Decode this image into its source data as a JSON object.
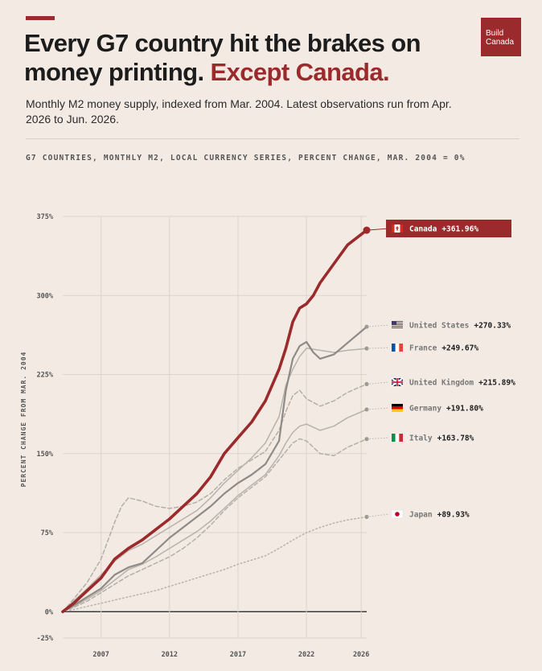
{
  "header": {
    "title_main": "Every G7 country hit the brakes on money printing.",
    "title_highlight": "Except Canada.",
    "subtitle": "Monthly M2 money supply, indexed from Mar. 2004. Latest observations run from Apr. 2026 to Jun. 2026.",
    "caption": "G7 COUNTRIES, MONTHLY M2, LOCAL CURRENCY SERIES, PERCENT CHANGE, MAR. 2004 = 0%",
    "logo_line1": "Build",
    "logo_line2": "Canada"
  },
  "colors": {
    "accent": "#9b2a2c",
    "background": "#f3ebe3",
    "grid": "#ddd3c9"
  },
  "chart_data": {
    "type": "line",
    "xlabel": "",
    "ylabel": "PERCENT CHANGE FROM MAR. 2004",
    "xlim": [
      2004.2,
      2026.4
    ],
    "ylim": [
      -25,
      375
    ],
    "yticks": [
      -25,
      0,
      75,
      150,
      225,
      300,
      375
    ],
    "ytick_labels": [
      "-25%",
      "0%",
      "75%",
      "150%",
      "225%",
      "300%",
      "375%"
    ],
    "xticks": [
      2007,
      2012,
      2017,
      2022,
      2026
    ],
    "xtick_labels": [
      "2007",
      "2012",
      "2017",
      "2022",
      "2026"
    ],
    "grid": true,
    "series": [
      {
        "name": "Canada",
        "label_value": "+361.96%",
        "flag": "ca",
        "style": "bold",
        "points": [
          [
            2004.2,
            0
          ],
          [
            2005,
            8
          ],
          [
            2006,
            20
          ],
          [
            2007,
            32
          ],
          [
            2008,
            50
          ],
          [
            2009,
            60
          ],
          [
            2010,
            68
          ],
          [
            2011,
            78
          ],
          [
            2012,
            88
          ],
          [
            2013,
            100
          ],
          [
            2014,
            112
          ],
          [
            2015,
            128
          ],
          [
            2016,
            150
          ],
          [
            2017,
            165
          ],
          [
            2018,
            180
          ],
          [
            2019,
            200
          ],
          [
            2020,
            230
          ],
          [
            2020.5,
            250
          ],
          [
            2021,
            275
          ],
          [
            2021.5,
            288
          ],
          [
            2022,
            292
          ],
          [
            2022.5,
            300
          ],
          [
            2023,
            312
          ],
          [
            2024,
            330
          ],
          [
            2025,
            348
          ],
          [
            2026.4,
            361.96
          ]
        ]
      },
      {
        "name": "United States",
        "label_value": "+270.33%",
        "flag": "us",
        "style": "solid",
        "points": [
          [
            2004.2,
            0
          ],
          [
            2005,
            6
          ],
          [
            2006,
            14
          ],
          [
            2007,
            22
          ],
          [
            2008,
            35
          ],
          [
            2009,
            42
          ],
          [
            2010,
            46
          ],
          [
            2011,
            58
          ],
          [
            2012,
            70
          ],
          [
            2013,
            80
          ],
          [
            2014,
            90
          ],
          [
            2015,
            100
          ],
          [
            2016,
            112
          ],
          [
            2017,
            122
          ],
          [
            2018,
            130
          ],
          [
            2019,
            140
          ],
          [
            2020,
            162
          ],
          [
            2020.5,
            210
          ],
          [
            2021,
            240
          ],
          [
            2021.5,
            252
          ],
          [
            2022,
            256
          ],
          [
            2022.5,
            246
          ],
          [
            2023,
            240
          ],
          [
            2024,
            244
          ],
          [
            2025,
            255
          ],
          [
            2026.4,
            270.33
          ]
        ]
      },
      {
        "name": "France",
        "label_value": "+249.67%",
        "flag": "fr",
        "style": "solid-light",
        "points": [
          [
            2004.2,
            0
          ],
          [
            2005,
            10
          ],
          [
            2006,
            22
          ],
          [
            2007,
            35
          ],
          [
            2008,
            48
          ],
          [
            2009,
            58
          ],
          [
            2010,
            64
          ],
          [
            2011,
            72
          ],
          [
            2012,
            80
          ],
          [
            2013,
            88
          ],
          [
            2014,
            96
          ],
          [
            2015,
            108
          ],
          [
            2016,
            122
          ],
          [
            2017,
            134
          ],
          [
            2018,
            146
          ],
          [
            2019,
            160
          ],
          [
            2020,
            185
          ],
          [
            2020.5,
            215
          ],
          [
            2021,
            230
          ],
          [
            2021.5,
            242
          ],
          [
            2022,
            250
          ],
          [
            2023,
            248
          ],
          [
            2024,
            246
          ],
          [
            2025,
            248
          ],
          [
            2026.4,
            249.67
          ]
        ]
      },
      {
        "name": "United Kingdom",
        "label_value": "+215.89%",
        "flag": "gb",
        "style": "dashed",
        "points": [
          [
            2004.2,
            0
          ],
          [
            2005,
            12
          ],
          [
            2006,
            28
          ],
          [
            2007,
            50
          ],
          [
            2008,
            85
          ],
          [
            2008.5,
            100
          ],
          [
            2009,
            108
          ],
          [
            2010,
            105
          ],
          [
            2011,
            100
          ],
          [
            2012,
            98
          ],
          [
            2013,
            100
          ],
          [
            2014,
            104
          ],
          [
            2015,
            112
          ],
          [
            2016,
            125
          ],
          [
            2017,
            136
          ],
          [
            2018,
            144
          ],
          [
            2019,
            152
          ],
          [
            2020,
            172
          ],
          [
            2020.5,
            190
          ],
          [
            2021,
            205
          ],
          [
            2021.5,
            210
          ],
          [
            2022,
            202
          ],
          [
            2023,
            195
          ],
          [
            2024,
            200
          ],
          [
            2025,
            208
          ],
          [
            2026.4,
            215.89
          ]
        ]
      },
      {
        "name": "Germany",
        "label_value": "+191.80%",
        "flag": "de",
        "style": "solid-light",
        "points": [
          [
            2004.2,
            0
          ],
          [
            2005,
            5
          ],
          [
            2006,
            12
          ],
          [
            2007,
            20
          ],
          [
            2008,
            30
          ],
          [
            2009,
            40
          ],
          [
            2010,
            45
          ],
          [
            2011,
            52
          ],
          [
            2012,
            60
          ],
          [
            2013,
            68
          ],
          [
            2014,
            76
          ],
          [
            2015,
            86
          ],
          [
            2016,
            98
          ],
          [
            2017,
            110
          ],
          [
            2018,
            120
          ],
          [
            2019,
            130
          ],
          [
            2020,
            148
          ],
          [
            2020.5,
            160
          ],
          [
            2021,
            170
          ],
          [
            2021.5,
            176
          ],
          [
            2022,
            178
          ],
          [
            2023,
            172
          ],
          [
            2024,
            176
          ],
          [
            2025,
            184
          ],
          [
            2026.4,
            191.8
          ]
        ]
      },
      {
        "name": "Italy",
        "label_value": "+163.78%",
        "flag": "it",
        "style": "dashed",
        "points": [
          [
            2004.2,
            0
          ],
          [
            2005,
            4
          ],
          [
            2006,
            10
          ],
          [
            2007,
            18
          ],
          [
            2008,
            26
          ],
          [
            2009,
            34
          ],
          [
            2010,
            40
          ],
          [
            2011,
            46
          ],
          [
            2012,
            52
          ],
          [
            2013,
            60
          ],
          [
            2014,
            70
          ],
          [
            2015,
            82
          ],
          [
            2016,
            96
          ],
          [
            2017,
            108
          ],
          [
            2018,
            118
          ],
          [
            2019,
            128
          ],
          [
            2020,
            144
          ],
          [
            2020.5,
            152
          ],
          [
            2021,
            160
          ],
          [
            2021.5,
            164
          ],
          [
            2022,
            162
          ],
          [
            2023,
            150
          ],
          [
            2024,
            148
          ],
          [
            2025,
            156
          ],
          [
            2026.4,
            163.78
          ]
        ]
      },
      {
        "name": "Japan",
        "label_value": "+89.93%",
        "flag": "jp",
        "style": "dotted",
        "points": [
          [
            2004.2,
            0
          ],
          [
            2005,
            2
          ],
          [
            2006,
            5
          ],
          [
            2007,
            8
          ],
          [
            2008,
            11
          ],
          [
            2009,
            14
          ],
          [
            2010,
            17
          ],
          [
            2011,
            20
          ],
          [
            2012,
            24
          ],
          [
            2013,
            28
          ],
          [
            2014,
            32
          ],
          [
            2015,
            36
          ],
          [
            2016,
            40
          ],
          [
            2017,
            45
          ],
          [
            2018,
            49
          ],
          [
            2019,
            53
          ],
          [
            2020,
            60
          ],
          [
            2021,
            68
          ],
          [
            2022,
            75
          ],
          [
            2023,
            80
          ],
          [
            2024,
            84
          ],
          [
            2025,
            87
          ],
          [
            2026.4,
            89.93
          ]
        ]
      }
    ]
  }
}
